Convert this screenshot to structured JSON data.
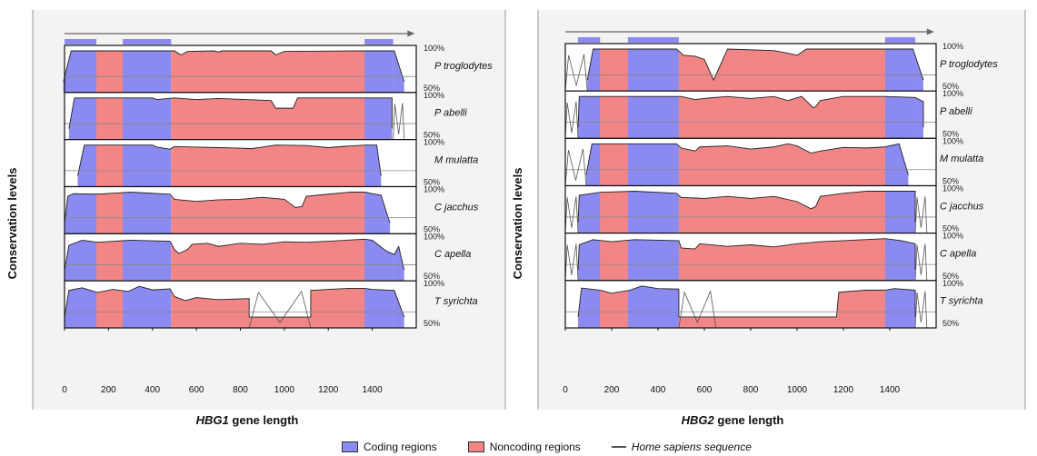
{
  "chart_data": [
    {
      "type": "area",
      "gene": "HBG1",
      "xlabel_italic": "HBG1",
      "xlabel_rest": "gene length",
      "ylabel": "Conservation levels",
      "x_ticks": [
        "0",
        "200",
        "400",
        "600",
        "800",
        "1000",
        "1200",
        "1400"
      ],
      "xlim": [
        0,
        1600
      ],
      "ylim_percent": [
        50,
        100
      ],
      "y_tick_labels": [
        "100%",
        "50%"
      ],
      "coding_regions": [
        [
          0,
          145
        ],
        [
          265,
          485
        ],
        [
          1365,
          1495
        ]
      ],
      "noncoding_regions": [
        [
          145,
          265
        ],
        [
          485,
          1365
        ]
      ],
      "series": [
        {
          "name": "P troglodytes",
          "profile": [
            [
              -5,
              40
            ],
            [
              30,
              100
            ],
            [
              480,
              100
            ],
            [
              500,
              100
            ],
            [
              530,
              92
            ],
            [
              560,
              99
            ],
            [
              680,
              100
            ],
            [
              700,
              98
            ],
            [
              720,
              100
            ],
            [
              940,
              100
            ],
            [
              960,
              92
            ],
            [
              1000,
              99
            ],
            [
              1340,
              100
            ],
            [
              1365,
              100
            ],
            [
              1500,
              100
            ],
            [
              1545,
              40
            ]
          ]
        },
        {
          "name": "P abelli",
          "profile": [
            [
              20,
              40
            ],
            [
              45,
              100
            ],
            [
              400,
              100
            ],
            [
              420,
              97
            ],
            [
              500,
              100
            ],
            [
              600,
              97
            ],
            [
              700,
              99
            ],
            [
              940,
              95
            ],
            [
              960,
              80
            ],
            [
              1040,
              80
            ],
            [
              1060,
              100
            ],
            [
              1490,
              100
            ],
            [
              1490,
              40
            ]
          ]
        },
        {
          "name": "M mulatta",
          "profile": [
            [
              60,
              40
            ],
            [
              90,
              100
            ],
            [
              400,
              100
            ],
            [
              420,
              96
            ],
            [
              480,
              92
            ],
            [
              500,
              97
            ],
            [
              600,
              96
            ],
            [
              700,
              95
            ],
            [
              800,
              94
            ],
            [
              850,
              93
            ],
            [
              900,
              96
            ],
            [
              960,
              100
            ],
            [
              1100,
              99
            ],
            [
              1200,
              95
            ],
            [
              1290,
              98
            ],
            [
              1370,
              100
            ],
            [
              1420,
              100
            ],
            [
              1440,
              40
            ]
          ]
        },
        {
          "name": "C jacchus",
          "profile": [
            [
              0,
              40
            ],
            [
              15,
              92
            ],
            [
              40,
              97
            ],
            [
              150,
              96
            ],
            [
              300,
              100
            ],
            [
              480,
              96
            ],
            [
              500,
              86
            ],
            [
              600,
              82
            ],
            [
              700,
              85
            ],
            [
              800,
              86
            ],
            [
              900,
              90
            ],
            [
              1000,
              86
            ],
            [
              1050,
              70
            ],
            [
              1080,
              72
            ],
            [
              1100,
              92
            ],
            [
              1200,
              96
            ],
            [
              1300,
              100
            ],
            [
              1365,
              100
            ],
            [
              1400,
              97
            ],
            [
              1440,
              94
            ],
            [
              1480,
              40
            ]
          ]
        },
        {
          "name": "C apella",
          "profile": [
            [
              0,
              40
            ],
            [
              20,
              88
            ],
            [
              80,
              98
            ],
            [
              150,
              94
            ],
            [
              300,
              98
            ],
            [
              480,
              96
            ],
            [
              500,
              80
            ],
            [
              520,
              72
            ],
            [
              560,
              80
            ],
            [
              580,
              90
            ],
            [
              650,
              92
            ],
            [
              700,
              86
            ],
            [
              800,
              92
            ],
            [
              900,
              90
            ],
            [
              1000,
              95
            ],
            [
              1100,
              94
            ],
            [
              1200,
              96
            ],
            [
              1365,
              100
            ],
            [
              1400,
              98
            ],
            [
              1460,
              78
            ],
            [
              1500,
              70
            ],
            [
              1520,
              86
            ],
            [
              1545,
              40
            ]
          ]
        },
        {
          "name": "T syrichta",
          "profile": [
            [
              0,
              40
            ],
            [
              20,
              92
            ],
            [
              80,
              97
            ],
            [
              150,
              88
            ],
            [
              220,
              94
            ],
            [
              290,
              90
            ],
            [
              340,
              100
            ],
            [
              400,
              93
            ],
            [
              480,
              95
            ],
            [
              500,
              80
            ],
            [
              550,
              72
            ],
            [
              600,
              78
            ],
            [
              700,
              74
            ],
            [
              840,
              76
            ],
            [
              840,
              40
            ],
            [
              1120,
              40
            ],
            [
              1120,
              92
            ],
            [
              1200,
              94
            ],
            [
              1300,
              96
            ],
            [
              1365,
              96
            ],
            [
              1400,
              94
            ],
            [
              1500,
              92
            ],
            [
              1545,
              40
            ]
          ]
        }
      ],
      "human_sequence_outline": [
        [
          {
            "from": 0,
            "to": 0
          }
        ],
        [
          {
            "from": 1495,
            "to": 1545
          }
        ],
        [],
        [],
        [],
        [
          {
            "from": 840,
            "to": 1120
          }
        ]
      ]
    },
    {
      "type": "area",
      "gene": "HBG2",
      "xlabel_italic": "HBG2",
      "xlabel_rest": "gene length",
      "ylabel": "Conservation levels",
      "x_ticks": [
        "0",
        "200",
        "400",
        "600",
        "800",
        "1000",
        "1200",
        "1400"
      ],
      "xlim": [
        0,
        1600
      ],
      "ylim_percent": [
        50,
        100
      ],
      "y_tick_labels": [
        "100%",
        "50%"
      ],
      "coding_regions": [
        [
          55,
          150
        ],
        [
          270,
          490
        ],
        [
          1380,
          1510
        ]
      ],
      "noncoding_regions": [
        [
          150,
          270
        ],
        [
          490,
          1380
        ]
      ],
      "series": [
        {
          "name": "P troglodytes",
          "profile": [
            [
              95,
              40
            ],
            [
              120,
              100
            ],
            [
              480,
              100
            ],
            [
              510,
              88
            ],
            [
              560,
              86
            ],
            [
              600,
              80
            ],
            [
              640,
              40
            ],
            [
              700,
              100
            ],
            [
              900,
              97
            ],
            [
              960,
              92
            ],
            [
              1000,
              88
            ],
            [
              1040,
              100
            ],
            [
              1380,
              100
            ],
            [
              1500,
              100
            ],
            [
              1545,
              40
            ]
          ]
        },
        {
          "name": "P abelli",
          "profile": [
            [
              55,
              40
            ],
            [
              60,
              100
            ],
            [
              500,
              100
            ],
            [
              560,
              94
            ],
            [
              620,
              97
            ],
            [
              700,
              100
            ],
            [
              800,
              96
            ],
            [
              900,
              100
            ],
            [
              960,
              92
            ],
            [
              1020,
              100
            ],
            [
              1070,
              78
            ],
            [
              1080,
              80
            ],
            [
              1100,
              92
            ],
            [
              1200,
              100
            ],
            [
              1380,
              100
            ],
            [
              1510,
              98
            ],
            [
              1545,
              90
            ],
            [
              1545,
              40
            ]
          ]
        },
        {
          "name": "M mulatta",
          "profile": [
            [
              90,
              40
            ],
            [
              115,
              100
            ],
            [
              480,
              100
            ],
            [
              500,
              92
            ],
            [
              560,
              86
            ],
            [
              580,
              94
            ],
            [
              700,
              96
            ],
            [
              800,
              90
            ],
            [
              900,
              94
            ],
            [
              960,
              100
            ],
            [
              1000,
              96
            ],
            [
              1060,
              82
            ],
            [
              1100,
              86
            ],
            [
              1200,
              93
            ],
            [
              1300,
              92
            ],
            [
              1380,
              94
            ],
            [
              1440,
              100
            ],
            [
              1480,
              40
            ]
          ]
        },
        {
          "name": "C jacchus",
          "profile": [
            [
              55,
              40
            ],
            [
              60,
              92
            ],
            [
              150,
              98
            ],
            [
              300,
              100
            ],
            [
              480,
              96
            ],
            [
              500,
              88
            ],
            [
              600,
              86
            ],
            [
              700,
              90
            ],
            [
              800,
              86
            ],
            [
              900,
              90
            ],
            [
              1000,
              80
            ],
            [
              1060,
              66
            ],
            [
              1080,
              70
            ],
            [
              1100,
              90
            ],
            [
              1200,
              96
            ],
            [
              1300,
              100
            ],
            [
              1380,
              100
            ],
            [
              1510,
              100
            ],
            [
              1510,
              40
            ]
          ]
        },
        {
          "name": "C apella",
          "profile": [
            [
              55,
              40
            ],
            [
              60,
              88
            ],
            [
              120,
              98
            ],
            [
              200,
              94
            ],
            [
              300,
              98
            ],
            [
              490,
              96
            ],
            [
              500,
              82
            ],
            [
              560,
              80
            ],
            [
              580,
              90
            ],
            [
              700,
              85
            ],
            [
              800,
              88
            ],
            [
              900,
              84
            ],
            [
              1000,
              90
            ],
            [
              1100,
              94
            ],
            [
              1200,
              96
            ],
            [
              1380,
              100
            ],
            [
              1450,
              96
            ],
            [
              1510,
              90
            ],
            [
              1510,
              40
            ]
          ]
        },
        {
          "name": "T syrichta",
          "profile": [
            [
              55,
              40
            ],
            [
              70,
              96
            ],
            [
              150,
              92
            ],
            [
              200,
              86
            ],
            [
              280,
              92
            ],
            [
              330,
              100
            ],
            [
              400,
              95
            ],
            [
              490,
              94
            ],
            [
              490,
              40
            ],
            [
              1170,
              40
            ],
            [
              1180,
              88
            ],
            [
              1300,
              92
            ],
            [
              1380,
              92
            ],
            [
              1420,
              95
            ],
            [
              1510,
              92
            ],
            [
              1510,
              40
            ]
          ]
        }
      ],
      "human_sequence_outline": [
        [
          {
            "from": 0,
            "to": 95
          }
        ],
        [
          {
            "from": 0,
            "to": 55
          }
        ],
        [
          {
            "from": 0,
            "to": 90
          }
        ],
        [
          {
            "from": 0,
            "to": 55
          },
          {
            "from": 1510,
            "to": 1560
          }
        ],
        [
          {
            "from": 0,
            "to": 55
          },
          {
            "from": 1510,
            "to": 1560
          }
        ],
        [
          {
            "from": 490,
            "to": 650
          },
          {
            "from": 1510,
            "to": 1560
          }
        ]
      ]
    }
  ],
  "legend": {
    "coding_label": "Coding regions",
    "noncoding_label": "Noncoding regions",
    "human_label": "Home sapiens sequence"
  },
  "colors": {
    "coding": "#8a8af0",
    "noncoding": "#f28686",
    "human_line": "#555555",
    "profile_line": "#222222",
    "panel_bg": "#f3f3f1"
  }
}
